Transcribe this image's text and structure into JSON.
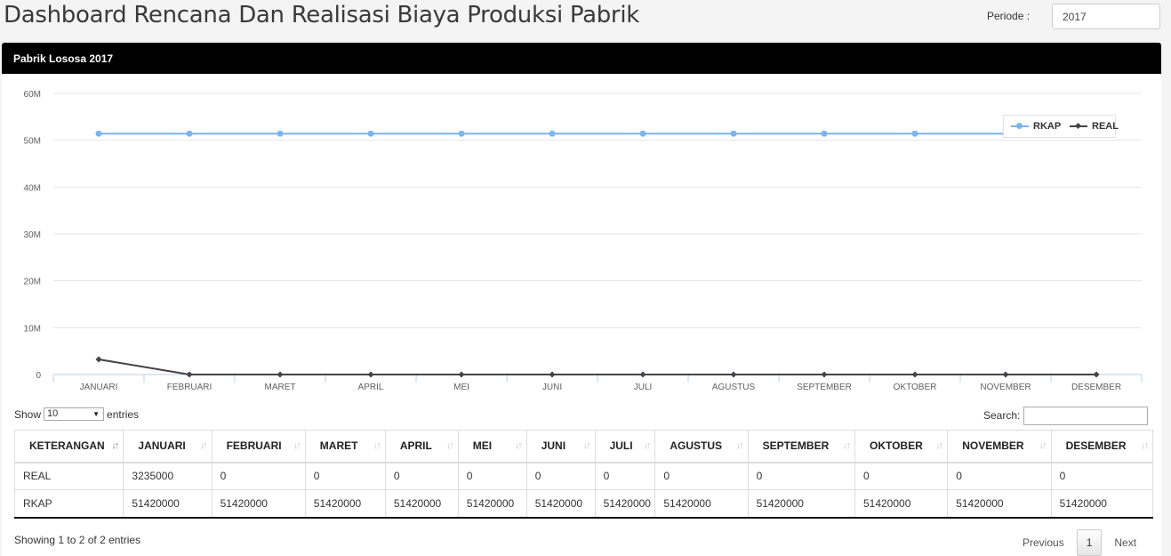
{
  "header": {
    "title": "Dashboard Rencana Dan Realisasi Biaya Produksi Pabrik",
    "periode_label": "Periode :",
    "periode_value": "2017"
  },
  "panel": {
    "title": "Pabrik Lososa 2017"
  },
  "chart_data": {
    "type": "line",
    "categories": [
      "JANUARI",
      "FEBRUARI",
      "MARET",
      "APRIL",
      "MEI",
      "JUNI",
      "JULI",
      "AGUSTUS",
      "SEPTEMBER",
      "OKTOBER",
      "NOVEMBER",
      "DESEMBER"
    ],
    "series": [
      {
        "name": "RKAP",
        "color": "#7cb5ec",
        "marker": "circle",
        "values": [
          51420000,
          51420000,
          51420000,
          51420000,
          51420000,
          51420000,
          51420000,
          51420000,
          51420000,
          51420000,
          51420000,
          51420000
        ]
      },
      {
        "name": "REAL",
        "color": "#434348",
        "marker": "diamond",
        "values": [
          3235000,
          0,
          0,
          0,
          0,
          0,
          0,
          0,
          0,
          0,
          0,
          0
        ]
      }
    ],
    "ylim": [
      0,
      60000000
    ],
    "yticks": [
      {
        "value": 0,
        "label": "0"
      },
      {
        "value": 10000000,
        "label": "10M"
      },
      {
        "value": 20000000,
        "label": "20M"
      },
      {
        "value": 30000000,
        "label": "30M"
      },
      {
        "value": 40000000,
        "label": "40M"
      },
      {
        "value": 50000000,
        "label": "50M"
      },
      {
        "value": 60000000,
        "label": "60M"
      }
    ],
    "grid": true,
    "legend": "top-right",
    "title": "",
    "xlabel": "",
    "ylabel": ""
  },
  "table_controls": {
    "show_label": "Show",
    "length_value": "10",
    "entries_label": "entries",
    "search_label": "Search:",
    "search_value": ""
  },
  "table": {
    "columns": [
      "KETERANGAN",
      "JANUARI",
      "FEBRUARI",
      "MARET",
      "APRIL",
      "MEI",
      "JUNI",
      "JULI",
      "AGUSTUS",
      "SEPTEMBER",
      "OKTOBER",
      "NOVEMBER",
      "DESEMBER"
    ],
    "rows": [
      [
        "REAL",
        "3235000",
        "0",
        "0",
        "0",
        "0",
        "0",
        "0",
        "0",
        "0",
        "0",
        "0",
        "0"
      ],
      [
        "RKAP",
        "51420000",
        "51420000",
        "51420000",
        "51420000",
        "51420000",
        "51420000",
        "51420000",
        "51420000",
        "51420000",
        "51420000",
        "51420000",
        "51420000"
      ]
    ]
  },
  "footer": {
    "info": "Showing 1 to 2 of 2 entries",
    "previous": "Previous",
    "current_page": "1",
    "next": "Next"
  }
}
